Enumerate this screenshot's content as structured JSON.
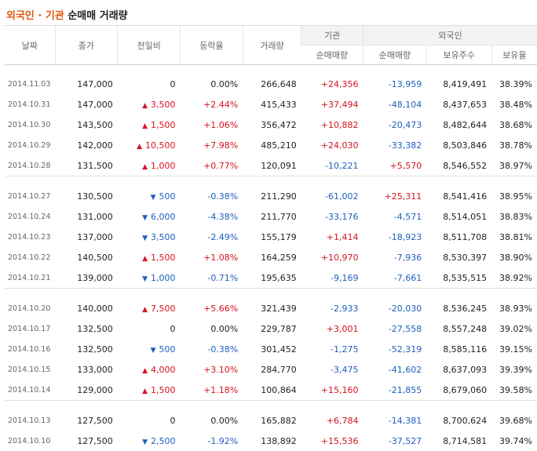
{
  "title": {
    "accent": "외국인 · 기관",
    "rest": "순매매 거래량"
  },
  "headers": {
    "date": "날짜",
    "close": "종가",
    "change": "전일비",
    "rate": "등락율",
    "volume": "거래량",
    "inst": "기관",
    "foreign": "외국인",
    "inst_net": "순매매량",
    "foreign_net": "순매매량",
    "holdings": "보유주수",
    "ratio": "보유율"
  },
  "groups": [
    [
      {
        "date": "2014.11.03",
        "close": "147,000",
        "dir": "flat",
        "change": "0",
        "rate": "0.00%",
        "volume": "266,648",
        "inst": "+24,356",
        "foreign": "-13,959",
        "holdings": "8,419,491",
        "ratio": "38.39%"
      },
      {
        "date": "2014.10.31",
        "close": "147,000",
        "dir": "up",
        "change": "3,500",
        "rate": "+2.44%",
        "volume": "415,433",
        "inst": "+37,494",
        "foreign": "-48,104",
        "holdings": "8,437,653",
        "ratio": "38.48%"
      },
      {
        "date": "2014.10.30",
        "close": "143,500",
        "dir": "up",
        "change": "1,500",
        "rate": "+1.06%",
        "volume": "356,472",
        "inst": "+10,882",
        "foreign": "-20,473",
        "holdings": "8,482,644",
        "ratio": "38.68%"
      },
      {
        "date": "2014.10.29",
        "close": "142,000",
        "dir": "up",
        "change": "10,500",
        "rate": "+7.98%",
        "volume": "485,210",
        "inst": "+24,030",
        "foreign": "-33,382",
        "holdings": "8,503,846",
        "ratio": "38.78%"
      },
      {
        "date": "2014.10.28",
        "close": "131,500",
        "dir": "up",
        "change": "1,000",
        "rate": "+0.77%",
        "volume": "120,091",
        "inst": "-10,221",
        "foreign": "+5,570",
        "holdings": "8,546,552",
        "ratio": "38.97%"
      }
    ],
    [
      {
        "date": "2014.10.27",
        "close": "130,500",
        "dir": "down",
        "change": "500",
        "rate": "-0.38%",
        "volume": "211,290",
        "inst": "-61,002",
        "foreign": "+25,311",
        "holdings": "8,541,416",
        "ratio": "38.95%"
      },
      {
        "date": "2014.10.24",
        "close": "131,000",
        "dir": "down",
        "change": "6,000",
        "rate": "-4.38%",
        "volume": "211,770",
        "inst": "-33,176",
        "foreign": "-4,571",
        "holdings": "8,514,051",
        "ratio": "38.83%"
      },
      {
        "date": "2014.10.23",
        "close": "137,000",
        "dir": "down",
        "change": "3,500",
        "rate": "-2.49%",
        "volume": "155,179",
        "inst": "+1,414",
        "foreign": "-18,923",
        "holdings": "8,511,708",
        "ratio": "38.81%"
      },
      {
        "date": "2014.10.22",
        "close": "140,500",
        "dir": "up",
        "change": "1,500",
        "rate": "+1.08%",
        "volume": "164,259",
        "inst": "+10,970",
        "foreign": "-7,936",
        "holdings": "8,530,397",
        "ratio": "38.90%"
      },
      {
        "date": "2014.10.21",
        "close": "139,000",
        "dir": "down",
        "change": "1,000",
        "rate": "-0.71%",
        "volume": "195,635",
        "inst": "-9,169",
        "foreign": "-7,661",
        "holdings": "8,535,515",
        "ratio": "38.92%"
      }
    ],
    [
      {
        "date": "2014.10.20",
        "close": "140,000",
        "dir": "up",
        "change": "7,500",
        "rate": "+5.66%",
        "volume": "321,439",
        "inst": "-2,933",
        "foreign": "-20,030",
        "holdings": "8,536,245",
        "ratio": "38.93%"
      },
      {
        "date": "2014.10.17",
        "close": "132,500",
        "dir": "flat",
        "change": "0",
        "rate": "0.00%",
        "volume": "229,787",
        "inst": "+3,001",
        "foreign": "-27,558",
        "holdings": "8,557,248",
        "ratio": "39.02%"
      },
      {
        "date": "2014.10.16",
        "close": "132,500",
        "dir": "down",
        "change": "500",
        "rate": "-0.38%",
        "volume": "301,452",
        "inst": "-1,275",
        "foreign": "-52,319",
        "holdings": "8,585,116",
        "ratio": "39.15%"
      },
      {
        "date": "2014.10.15",
        "close": "133,000",
        "dir": "up",
        "change": "4,000",
        "rate": "+3.10%",
        "volume": "284,770",
        "inst": "-3,475",
        "foreign": "-41,602",
        "holdings": "8,637,093",
        "ratio": "39.39%"
      },
      {
        "date": "2014.10.14",
        "close": "129,000",
        "dir": "up",
        "change": "1,500",
        "rate": "+1.18%",
        "volume": "100,864",
        "inst": "+15,160",
        "foreign": "-21,855",
        "holdings": "8,679,060",
        "ratio": "39.58%"
      }
    ],
    [
      {
        "date": "2014.10.13",
        "close": "127,500",
        "dir": "flat",
        "change": "0",
        "rate": "0.00%",
        "volume": "165,882",
        "inst": "+6,784",
        "foreign": "-14,381",
        "holdings": "8,700,624",
        "ratio": "39.68%"
      },
      {
        "date": "2014.10.10",
        "close": "127,500",
        "dir": "down",
        "change": "2,500",
        "rate": "-1.92%",
        "volume": "138,892",
        "inst": "+15,536",
        "foreign": "-37,527",
        "holdings": "8,714,581",
        "ratio": "39.74%"
      }
    ]
  ],
  "colors": {
    "up": "#d5121d",
    "down": "#1e5fbf",
    "accent": "#e0560e"
  }
}
